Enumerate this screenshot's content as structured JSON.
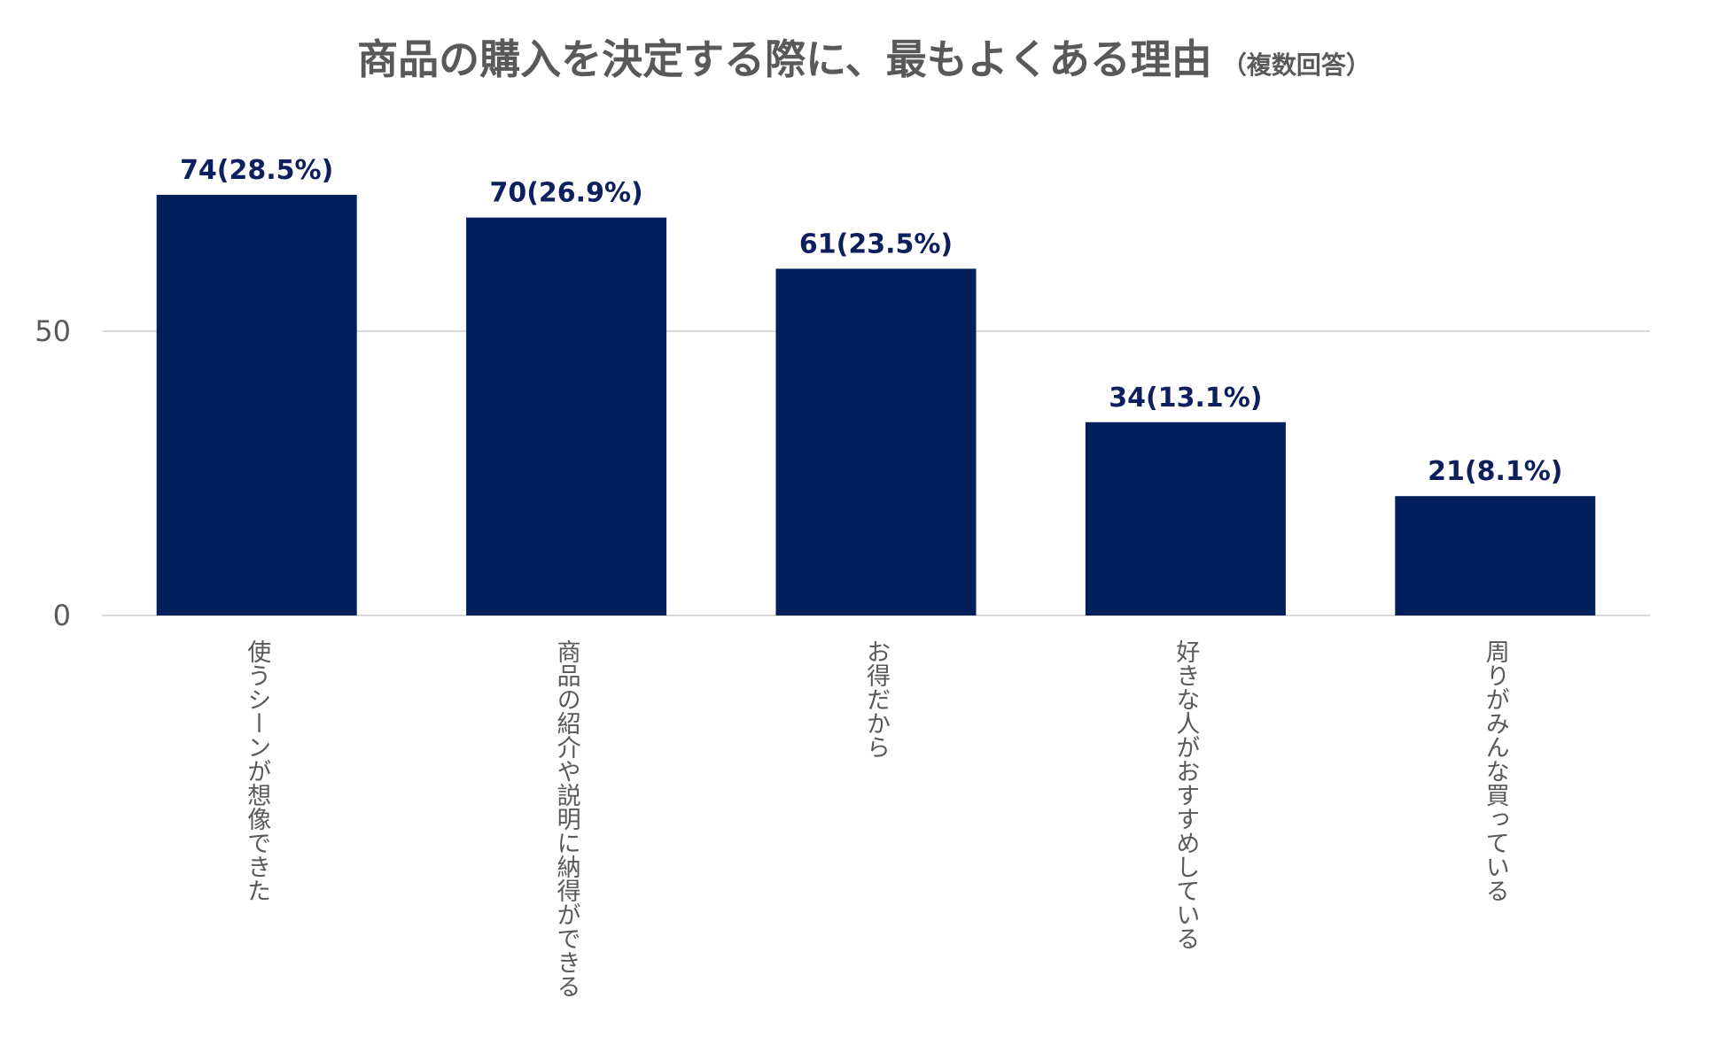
{
  "chart_data": {
    "type": "bar",
    "title": "商品の購入を決定する際に、最もよくある理由",
    "subtitle": "（複数回答）",
    "categories": [
      "使うシーンが想像できた",
      "商品の紹介や説明に納得ができる",
      "お得だから",
      "好きな人がおすすめしている",
      "周りがみんな買っている"
    ],
    "values": [
      74,
      70,
      61,
      34,
      21
    ],
    "data_labels": [
      "74(28.5%)",
      "70(26.9%)",
      "61(23.5%)",
      "34(13.1%)",
      "21(8.1%)"
    ],
    "y_ticks": [
      0,
      50
    ],
    "ylim": [
      0,
      74
    ],
    "grid": true,
    "legend": "none",
    "bar_color": "#001f5b",
    "gridline_color": "#d9d9d9",
    "label_color": "#0d1f5c",
    "text_color": "#595959"
  }
}
